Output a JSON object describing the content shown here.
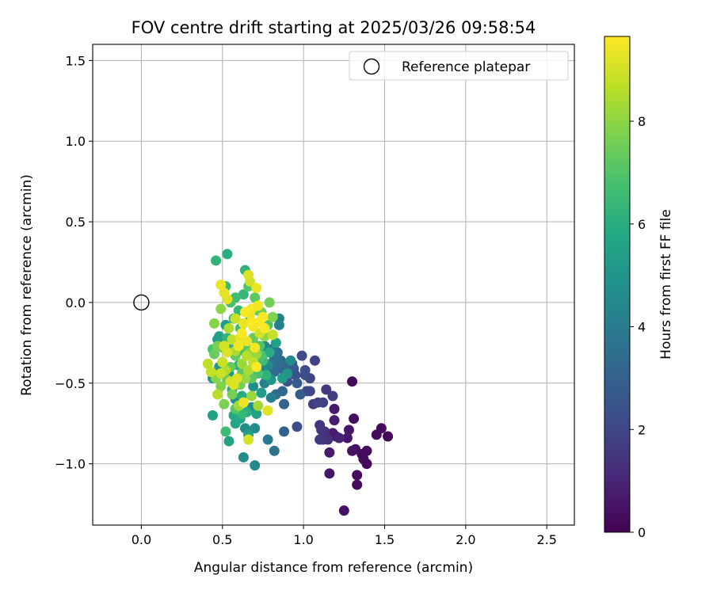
{
  "chart_data": {
    "type": "scatter",
    "title": "FOV centre drift starting at 2025/03/26 09:58:54",
    "xlabel": "Angular distance from reference (arcmin)",
    "ylabel": "Rotation from reference (arcmin)",
    "xlim": [
      -0.3,
      2.67
    ],
    "ylim": [
      -1.38,
      1.6
    ],
    "xticks": [
      "0.0",
      "0.5",
      "1.0",
      "1.5",
      "2.0",
      "2.5"
    ],
    "xtick_values": [
      0,
      0.5,
      1.0,
      1.5,
      2.0,
      2.5
    ],
    "yticks": [
      "−1.0",
      "−0.5",
      "0.0",
      "0.5",
      "1.0",
      "1.5"
    ],
    "ytick_values": [
      -1.0,
      -0.5,
      0.0,
      0.5,
      1.0,
      1.5
    ],
    "grid": true,
    "legend": {
      "placement": "top-right",
      "entries": [
        "Reference platepar"
      ]
    },
    "reference_point": {
      "x": 0.0,
      "y": 0.0
    },
    "colorbar": {
      "label": "Hours from first FF file",
      "range": [
        0,
        9.65
      ],
      "ticks": [
        "0",
        "2",
        "4",
        "6",
        "8"
      ],
      "tick_values": [
        0,
        2,
        4,
        6,
        8
      ],
      "colormap": "viridis"
    },
    "points": [
      [
        1.52,
        -0.83,
        0.1
      ],
      [
        1.48,
        -0.78,
        0.2
      ],
      [
        1.39,
        -0.92,
        0.2
      ],
      [
        1.39,
        -1.0,
        0.2
      ],
      [
        1.36,
        -0.94,
        0.3
      ],
      [
        1.33,
        -1.07,
        0.3
      ],
      [
        1.33,
        -1.13,
        0.3
      ],
      [
        1.31,
        -0.72,
        0.3
      ],
      [
        1.3,
        -0.49,
        0.3
      ],
      [
        1.32,
        -0.91,
        0.4
      ],
      [
        1.25,
        -1.29,
        0.4
      ],
      [
        1.27,
        -0.84,
        0.6
      ],
      [
        1.28,
        -0.79,
        0.6
      ],
      [
        1.16,
        -1.06,
        0.6
      ],
      [
        1.16,
        -0.93,
        0.7
      ],
      [
        1.18,
        -0.81,
        0.7
      ],
      [
        1.2,
        -0.83,
        0.7
      ],
      [
        1.19,
        -0.66,
        0.7
      ],
      [
        1.19,
        -0.73,
        0.8
      ],
      [
        1.15,
        -0.85,
        1.3
      ],
      [
        1.12,
        -0.85,
        1.4
      ],
      [
        1.1,
        -0.76,
        1.5
      ],
      [
        1.11,
        -0.79,
        1.5
      ],
      [
        1.1,
        -0.85,
        1.6
      ],
      [
        1.14,
        -0.54,
        1.6
      ],
      [
        1.18,
        -0.58,
        1.7
      ],
      [
        1.12,
        -0.62,
        1.8
      ],
      [
        1.09,
        -0.62,
        1.9
      ],
      [
        1.07,
        -0.36,
        1.9
      ],
      [
        1.04,
        -0.55,
        2.0
      ],
      [
        1.04,
        -0.47,
        2.0
      ],
      [
        1.02,
        -0.55,
        2.1
      ],
      [
        1.01,
        -0.42,
        2.2
      ],
      [
        0.99,
        -0.33,
        2.2
      ],
      [
        0.96,
        -0.77,
        2.3
      ],
      [
        0.95,
        -0.45,
        2.4
      ],
      [
        0.93,
        -0.38,
        2.6
      ],
      [
        0.92,
        -0.4,
        2.7
      ],
      [
        0.96,
        -0.5,
        2.8
      ],
      [
        0.98,
        -0.57,
        2.8
      ],
      [
        0.88,
        -0.8,
        3.0
      ],
      [
        0.88,
        -0.63,
        3.0
      ],
      [
        0.88,
        -0.39,
        3.1
      ],
      [
        0.86,
        -0.41,
        3.2
      ],
      [
        0.87,
        -0.55,
        3.3
      ],
      [
        0.85,
        -0.38,
        3.4
      ],
      [
        0.83,
        -0.57,
        3.5
      ],
      [
        0.82,
        -0.35,
        3.6
      ],
      [
        0.84,
        -0.31,
        3.6
      ],
      [
        0.82,
        -0.92,
        3.7
      ],
      [
        0.8,
        -0.38,
        3.8
      ],
      [
        0.78,
        -0.85,
        3.9
      ],
      [
        0.8,
        -0.29,
        3.9
      ],
      [
        0.77,
        -0.4,
        4.0
      ],
      [
        0.8,
        -0.59,
        4.1
      ],
      [
        0.85,
        -0.14,
        4.1
      ],
      [
        0.85,
        -0.1,
        4.2
      ],
      [
        0.76,
        -0.5,
        4.2
      ],
      [
        0.75,
        -0.44,
        4.3
      ],
      [
        0.71,
        -0.27,
        4.3
      ],
      [
        0.76,
        -0.27,
        4.4
      ],
      [
        0.7,
        -1.01,
        4.5
      ],
      [
        0.7,
        -0.78,
        4.6
      ],
      [
        0.63,
        -0.96,
        4.6
      ],
      [
        0.64,
        -0.78,
        4.7
      ],
      [
        0.68,
        -0.65,
        4.7
      ],
      [
        0.69,
        -0.52,
        4.8
      ],
      [
        0.58,
        -0.6,
        4.8
      ],
      [
        0.54,
        -0.44,
        4.9
      ],
      [
        0.6,
        -0.49,
        5.0
      ],
      [
        0.52,
        -0.42,
        5.0
      ],
      [
        0.48,
        -0.4,
        5.1
      ],
      [
        0.44,
        -0.47,
        5.1
      ],
      [
        0.47,
        -0.23,
        5.2
      ],
      [
        0.52,
        -0.14,
        5.3
      ],
      [
        0.48,
        -0.21,
        5.4
      ],
      [
        0.44,
        -0.7,
        5.5
      ],
      [
        0.54,
        -0.86,
        5.6
      ],
      [
        0.58,
        -0.75,
        5.7
      ],
      [
        0.61,
        -0.72,
        5.8
      ],
      [
        0.57,
        -0.7,
        5.8
      ],
      [
        0.56,
        -0.54,
        5.9
      ],
      [
        0.62,
        -0.58,
        6.0
      ],
      [
        0.65,
        -0.68,
        6.0
      ],
      [
        0.6,
        -0.39,
        6.1
      ],
      [
        0.55,
        -0.29,
        6.2
      ],
      [
        0.53,
        -0.22,
        6.3
      ],
      [
        0.57,
        -0.1,
        6.3
      ],
      [
        0.6,
        -0.05,
        6.4
      ],
      [
        0.63,
        0.05,
        6.4
      ],
      [
        0.52,
        0.1,
        6.5
      ],
      [
        0.58,
        0.03,
        6.6
      ],
      [
        0.61,
        -0.16,
        6.6
      ],
      [
        0.63,
        -0.3,
        6.7
      ],
      [
        0.67,
        -0.11,
        6.7
      ],
      [
        0.7,
        -0.38,
        6.8
      ],
      [
        0.72,
        -0.44,
        6.8
      ],
      [
        0.74,
        -0.33,
        6.9
      ],
      [
        0.75,
        -0.2,
        7.0
      ],
      [
        0.78,
        -0.14,
        7.0
      ],
      [
        0.72,
        -0.05,
        7.1
      ],
      [
        0.65,
        -0.28,
        7.1
      ],
      [
        0.68,
        -0.47,
        7.2
      ],
      [
        0.62,
        -0.44,
        7.2
      ],
      [
        0.58,
        -0.33,
        7.3
      ],
      [
        0.55,
        -0.4,
        7.3
      ],
      [
        0.5,
        -0.37,
        7.4
      ],
      [
        0.45,
        -0.32,
        7.4
      ],
      [
        0.5,
        -0.28,
        7.5
      ],
      [
        0.53,
        -0.48,
        7.5
      ],
      [
        0.56,
        -0.57,
        7.6
      ],
      [
        0.51,
        -0.63,
        7.7
      ],
      [
        0.49,
        -0.52,
        7.8
      ],
      [
        0.46,
        -0.47,
        7.9
      ],
      [
        0.45,
        -0.13,
        7.9
      ],
      [
        0.49,
        -0.04,
        8.0
      ],
      [
        0.46,
        0.26,
        6.3
      ],
      [
        0.53,
        0.3,
        6.0
      ],
      [
        0.64,
        0.2,
        6.2
      ],
      [
        0.55,
        0.0,
        6.8
      ],
      [
        0.66,
        0.1,
        7.0
      ],
      [
        0.7,
        0.03,
        7.2
      ],
      [
        0.74,
        -0.06,
        7.5
      ],
      [
        0.79,
        0.0,
        7.6
      ],
      [
        0.81,
        -0.09,
        7.8
      ],
      [
        0.76,
        -0.21,
        8.0
      ],
      [
        0.71,
        -0.32,
        8.1
      ],
      [
        0.68,
        -0.58,
        8.2
      ],
      [
        0.72,
        -0.64,
        8.3
      ],
      [
        0.6,
        -0.64,
        8.3
      ],
      [
        0.58,
        -0.3,
        8.4
      ],
      [
        0.54,
        -0.16,
        8.5
      ],
      [
        0.52,
        -0.42,
        8.5
      ],
      [
        0.47,
        -0.57,
        8.6
      ],
      [
        0.41,
        -0.38,
        8.7
      ],
      [
        0.43,
        -0.43,
        8.8
      ],
      [
        0.49,
        -0.44,
        8.9
      ],
      [
        0.5,
        -0.37,
        8.9
      ],
      [
        0.51,
        -0.27,
        9.0
      ],
      [
        0.53,
        -0.31,
        9.1
      ],
      [
        0.55,
        -0.49,
        9.1
      ],
      [
        0.57,
        -0.51,
        9.2
      ],
      [
        0.59,
        -0.47,
        9.2
      ],
      [
        0.61,
        -0.22,
        9.3
      ],
      [
        0.63,
        -0.13,
        9.3
      ],
      [
        0.65,
        -0.24,
        9.4
      ],
      [
        0.67,
        -0.07,
        9.4
      ],
      [
        0.68,
        -0.04,
        9.5
      ],
      [
        0.69,
        -0.15,
        9.5
      ],
      [
        0.7,
        -0.28,
        9.5
      ],
      [
        0.71,
        -0.4,
        9.6
      ],
      [
        0.73,
        -0.12,
        9.6
      ],
      [
        0.75,
        -0.09,
        9.6
      ],
      [
        0.76,
        -0.16,
        9.6
      ],
      [
        0.78,
        -0.67,
        9.2
      ],
      [
        0.66,
        -0.85,
        9.0
      ],
      [
        0.63,
        -0.62,
        9.4
      ],
      [
        0.6,
        -0.27,
        9.5
      ],
      [
        0.64,
        -0.06,
        9.6
      ],
      [
        0.49,
        0.11,
        9.4
      ],
      [
        0.51,
        0.06,
        9.3
      ],
      [
        0.53,
        0.02,
        9.2
      ],
      [
        0.66,
        0.17,
        9.2
      ],
      [
        0.67,
        0.13,
        9.0
      ],
      [
        0.71,
        0.09,
        9.4
      ],
      [
        0.81,
        -0.2,
        8.8
      ],
      [
        0.65,
        -0.33,
        8.6
      ],
      [
        0.62,
        -0.38,
        8.2
      ],
      [
        0.67,
        -0.31,
        7.8
      ],
      [
        0.69,
        -0.22,
        7.4
      ],
      [
        0.73,
        -0.27,
        7.0
      ],
      [
        0.75,
        -0.36,
        6.6
      ],
      [
        0.77,
        -0.45,
        6.2
      ],
      [
        0.79,
        -0.31,
        5.9
      ],
      [
        0.83,
        -0.25,
        5.5
      ],
      [
        0.87,
        -0.47,
        5.2
      ],
      [
        0.9,
        -0.44,
        4.9
      ],
      [
        0.92,
        -0.36,
        4.6
      ],
      [
        0.74,
        -0.56,
        5.3
      ],
      [
        0.71,
        -0.69,
        5.6
      ],
      [
        0.66,
        -0.82,
        5.4
      ],
      [
        0.62,
        -0.69,
        6.4
      ],
      [
        0.52,
        -0.8,
        6.6
      ],
      [
        0.58,
        -0.66,
        7.1
      ],
      [
        0.61,
        -0.51,
        7.6
      ],
      [
        0.64,
        -0.47,
        8.1
      ],
      [
        0.66,
        -0.42,
        8.4
      ],
      [
        0.69,
        -0.37,
        8.7
      ],
      [
        0.73,
        -0.19,
        9.0
      ],
      [
        0.62,
        -0.19,
        9.6
      ],
      [
        0.68,
        -0.12,
        9.6
      ],
      [
        0.72,
        -0.02,
        9.5
      ],
      [
        0.58,
        -0.1,
        8.9
      ],
      [
        0.56,
        -0.23,
        8.7
      ],
      [
        0.47,
        -0.27,
        7.7
      ],
      [
        0.44,
        -0.29,
        6.9
      ],
      [
        0.8,
        -0.48,
        5.0
      ],
      [
        0.78,
        -0.39,
        4.5
      ],
      [
        0.82,
        -0.43,
        3.4
      ],
      [
        0.86,
        -0.36,
        3.2
      ],
      [
        0.9,
        -0.49,
        2.5
      ],
      [
        0.94,
        -0.41,
        2.6
      ],
      [
        1.01,
        -0.45,
        2.3
      ],
      [
        1.06,
        -0.63,
        1.7
      ],
      [
        1.13,
        -0.8,
        1.2
      ],
      [
        1.22,
        -0.84,
        0.9
      ],
      [
        1.3,
        -0.92,
        0.5
      ],
      [
        1.37,
        -0.97,
        0.3
      ],
      [
        1.45,
        -0.82,
        0.25
      ]
    ]
  }
}
